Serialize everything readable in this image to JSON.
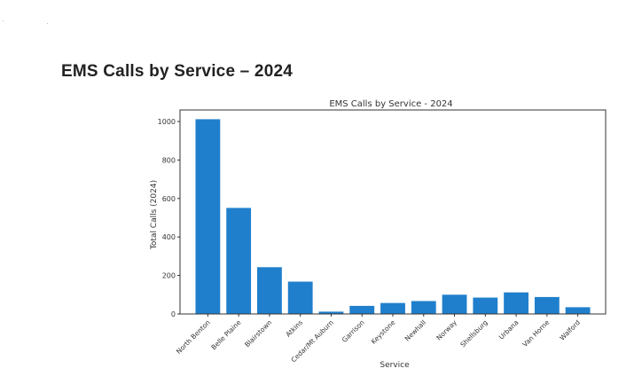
{
  "page": {
    "heading": "EMS Calls by Service – 2024"
  },
  "chart_data": {
    "type": "bar",
    "title": "EMS Calls by Service - 2024",
    "xlabel": "Service",
    "ylabel": "Total Calls (2024)",
    "categories": [
      "North Benton",
      "Belle Plaine",
      "Blairstown",
      "Atkins",
      "Cedar/Mt Auburn",
      "Garrison",
      "Keystone",
      "Newhall",
      "Norway",
      "Shellsburg",
      "Urbana",
      "Van Horne",
      "Walford"
    ],
    "values": [
      1012,
      551,
      243,
      168,
      12,
      42,
      57,
      67,
      100,
      85,
      112,
      88,
      35
    ],
    "ylim": [
      0,
      1060
    ],
    "yticks": [
      0,
      200,
      400,
      600,
      800,
      1000
    ],
    "grid": false,
    "legend": "none",
    "bar_color": "#1f7fcc"
  }
}
